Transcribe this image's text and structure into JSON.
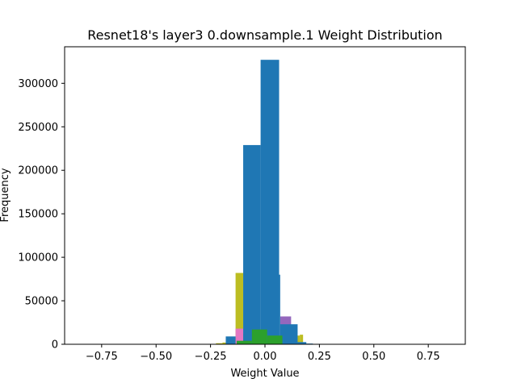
{
  "chart_data": {
    "type": "bar",
    "subtype": "histogram-overlay",
    "title": "Resnet18's layer3 0.downsample.1 Weight Distribution",
    "xlabel": "Weight Value",
    "ylabel": "Frequency",
    "xlim": [
      -0.92,
      0.92
    ],
    "ylim": [
      0,
      342000
    ],
    "x_ticks": [
      -0.75,
      -0.5,
      -0.25,
      0.0,
      0.25,
      0.5,
      0.75
    ],
    "x_tick_labels": [
      "−0.75",
      "−0.50",
      "−0.25",
      "0.00",
      "0.25",
      "0.50",
      "0.75"
    ],
    "y_ticks": [
      0,
      50000,
      100000,
      150000,
      200000,
      250000,
      300000
    ],
    "y_tick_labels": [
      "0",
      "50000",
      "100000",
      "150000",
      "200000",
      "250000",
      "300000"
    ],
    "grid": false,
    "legend": "none",
    "series": [
      {
        "color": "#bcbd22",
        "bins": [
          {
            "x0": -0.225,
            "x1": -0.195,
            "value": 1200
          },
          {
            "x0": -0.195,
            "x1": -0.165,
            "value": 2000
          },
          {
            "x0": -0.165,
            "x1": -0.135,
            "value": 8000
          },
          {
            "x0": -0.135,
            "x1": -0.1,
            "value": 82000
          },
          {
            "x0": -0.1,
            "x1": -0.06,
            "value": 12000
          },
          {
            "x0": -0.06,
            "x1": 0.16,
            "value": 10000
          },
          {
            "x0": 0.16,
            "x1": 0.175,
            "value": 11000
          }
        ]
      },
      {
        "color": "#e377c2",
        "bins": [
          {
            "x0": -0.135,
            "x1": -0.1,
            "value": 18000
          }
        ]
      },
      {
        "color": "#9467bd",
        "bins": [
          {
            "x0": 0.07,
            "x1": 0.12,
            "value": 32000
          }
        ]
      },
      {
        "color": "#1f77b4",
        "bins": [
          {
            "x0": -0.18,
            "x1": -0.135,
            "value": 9000
          },
          {
            "x0": -0.1,
            "x1": -0.02,
            "value": 229000
          },
          {
            "x0": -0.02,
            "x1": 0.065,
            "value": 327000
          },
          {
            "x0": 0.065,
            "x1": 0.07,
            "value": 80000
          },
          {
            "x0": 0.07,
            "x1": 0.15,
            "value": 23000
          },
          {
            "x0": 0.15,
            "x1": 0.19,
            "value": 2500
          },
          {
            "x0": 0.19,
            "x1": 0.22,
            "value": 800
          }
        ]
      },
      {
        "color": "#2ca02c",
        "bins": [
          {
            "x0": -0.13,
            "x1": -0.06,
            "value": 4000
          },
          {
            "x0": -0.06,
            "x1": 0.01,
            "value": 17000
          },
          {
            "x0": 0.01,
            "x1": 0.08,
            "value": 10000
          }
        ]
      }
    ]
  }
}
